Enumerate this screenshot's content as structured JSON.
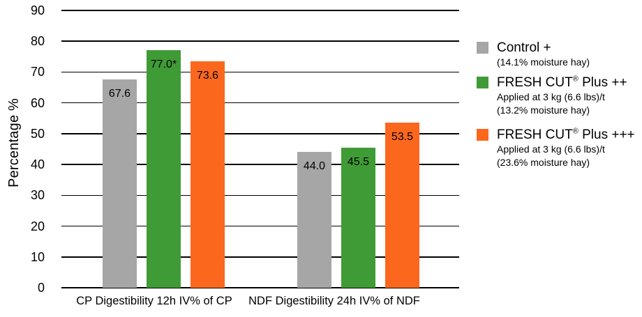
{
  "chart_data": {
    "type": "bar",
    "title": "",
    "ylabel": "Percentage %",
    "xlabel": "",
    "ylim": [
      0,
      90
    ],
    "yticks": [
      0,
      10,
      20,
      30,
      40,
      50,
      60,
      70,
      80,
      90
    ],
    "grid": "horizontal",
    "legend_position": "right",
    "categories": [
      "CP Digestibility 12h IV% of CP",
      "NDF Digestibility 24h IV% of NDF"
    ],
    "series": [
      {
        "name": "Control +",
        "color": "#a6a6a6",
        "values": [
          67.6,
          44.0
        ],
        "labels": [
          "67.6",
          "44.0"
        ]
      },
      {
        "name": "FRESH CUT® Plus ++",
        "color": "#3f9b35",
        "values": [
          77.0,
          45.5
        ],
        "labels": [
          "77.0*",
          "45.5"
        ]
      },
      {
        "name": "FRESH CUT® Plus +++",
        "color": "#fc671e",
        "values": [
          73.6,
          53.5
        ],
        "labels": [
          "73.6",
          "53.5"
        ]
      }
    ]
  },
  "legend": {
    "items": [
      {
        "title_pre": "Control +",
        "title_reg": "",
        "title_post": "",
        "subs": [
          "(14.1% moisture hay)"
        ],
        "color": "#a6a6a6"
      },
      {
        "title_pre": "FRESH CUT",
        "title_reg": "®",
        "title_post": " Plus ++",
        "subs": [
          "Applied at 3 kg (6.6 lbs)/t",
          "(13.2% moisture hay)"
        ],
        "color": "#3f9b35"
      },
      {
        "title_pre": "FRESH CUT",
        "title_reg": "®",
        "title_post": " Plus +++",
        "subs": [
          "Applied at 3 kg (6.6 lbs)/t",
          "(23.6% moisture hay)"
        ],
        "color": "#fc671e"
      }
    ]
  }
}
